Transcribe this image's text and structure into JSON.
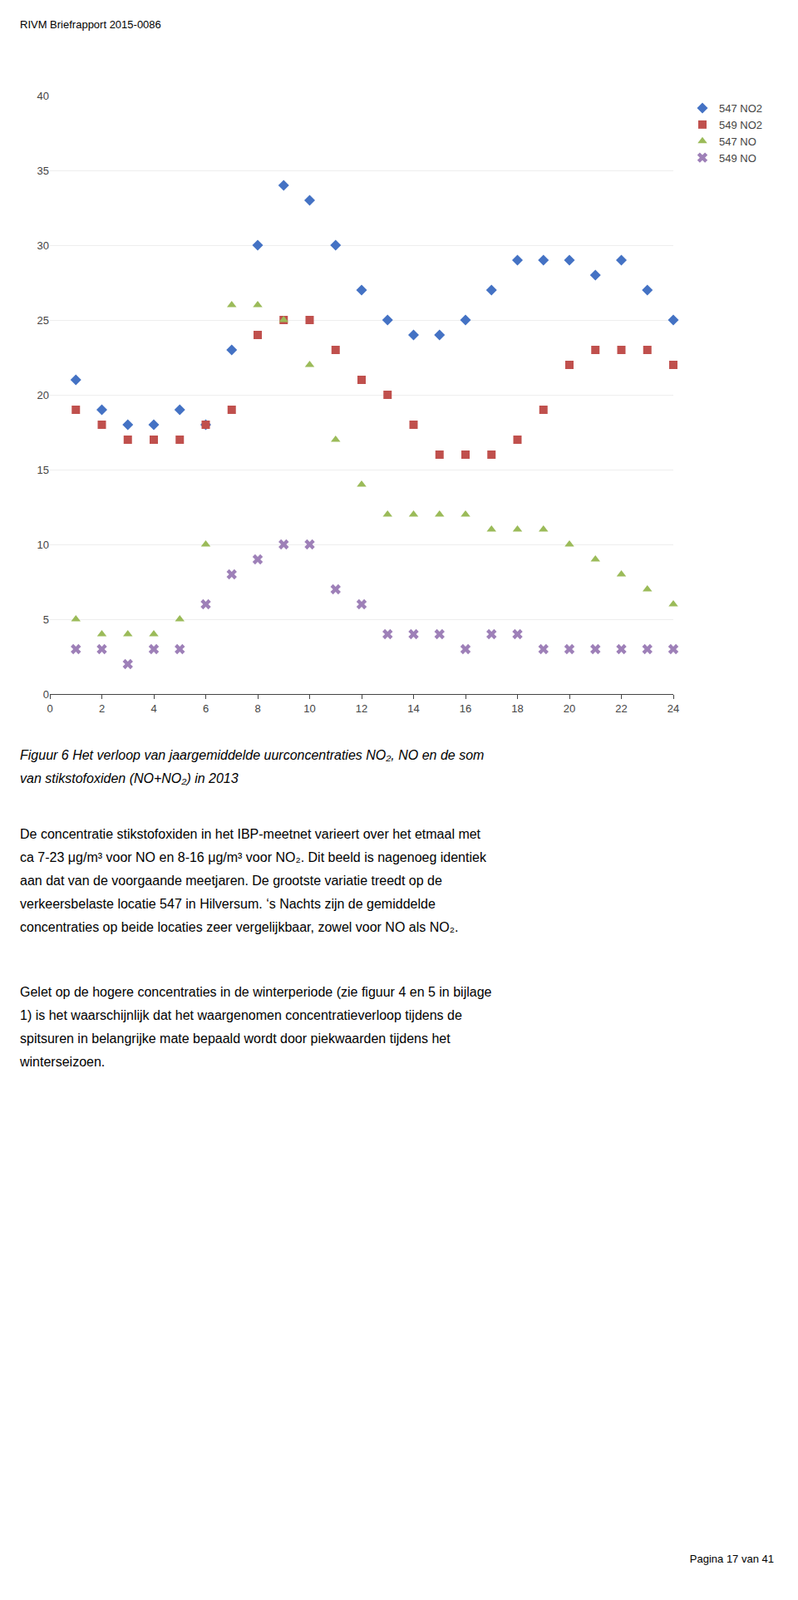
{
  "header": "RIVM Briefrapport 2015-0086",
  "chart_data": {
    "type": "scatter",
    "x": [
      1,
      2,
      3,
      4,
      5,
      6,
      7,
      8,
      9,
      10,
      11,
      12,
      13,
      14,
      15,
      16,
      17,
      18,
      19,
      20,
      21,
      22,
      23,
      24
    ],
    "series": [
      {
        "name": "547 NO2",
        "color": "#4472C4",
        "marker": "diamond",
        "values": [
          21,
          19,
          18,
          18,
          19,
          18,
          23,
          30,
          34,
          33,
          30,
          27,
          25,
          24,
          24,
          25,
          27,
          29,
          29,
          29,
          28,
          29,
          27,
          25
        ]
      },
      {
        "name": "549 NO2",
        "color": "#C0504D",
        "marker": "square",
        "values": [
          19,
          18,
          17,
          17,
          17,
          18,
          19,
          24,
          25,
          25,
          23,
          21,
          20,
          18,
          16,
          16,
          16,
          17,
          19,
          22,
          23,
          23,
          23,
          22
        ]
      },
      {
        "name": "547 NO",
        "color": "#9BBB59",
        "marker": "triangle-up",
        "values": [
          5,
          4,
          4,
          4,
          5,
          10,
          26,
          26,
          25,
          22,
          17,
          14,
          12,
          12,
          12,
          12,
          11,
          11,
          11,
          10,
          9,
          8,
          7,
          6
        ]
      },
      {
        "name": "549 NO",
        "color": "#9E80B8",
        "marker": "x",
        "values": [
          3,
          3,
          2,
          3,
          3,
          6,
          8,
          9,
          10,
          10,
          7,
          6,
          4,
          4,
          4,
          3,
          4,
          4,
          3,
          3,
          3,
          3,
          3,
          3
        ]
      }
    ],
    "xlim": [
      0,
      24
    ],
    "xticks": [
      0,
      2,
      4,
      6,
      8,
      10,
      12,
      14,
      16,
      18,
      20,
      22,
      24
    ],
    "ylim": [
      0,
      40
    ],
    "yticks": [
      0,
      5,
      10,
      15,
      20,
      25,
      30,
      35,
      40
    ],
    "grid": true,
    "legend": "right"
  },
  "caption": [
    "Figuur 6  Het verloop van jaargemiddelde uurconcentraties NO₂, NO en de som",
    "van stikstofoxiden (NO+NO₂) in 2013"
  ],
  "body": [
    [
      "De concentratie stikstofoxiden in het IBP-meetnet varieert over het etmaal met",
      "ca 7-23 μg/m³ voor NO en 8-16 μg/m³ voor NO₂. Dit beeld is nagenoeg identiek",
      "aan dat van de voorgaande meetjaren. De grootste variatie treedt op de",
      "verkeersbelaste locatie 547 in Hilversum. ‘s Nachts zijn de gemiddelde",
      "concentraties op beide locaties zeer vergelijkbaar, zowel voor NO als NO₂."
    ],
    [
      "Gelet op de hogere concentraties in de winterperiode (zie figuur 4 en 5 in bijlage",
      "1) is het waarschijnlijk dat het waargenomen concentratieverloop tijdens de",
      "spitsuren in belangrijke mate bepaald wordt door piekwaarden tijdens het",
      "winterseizoen."
    ]
  ],
  "footer": "Pagina 17 van 41"
}
